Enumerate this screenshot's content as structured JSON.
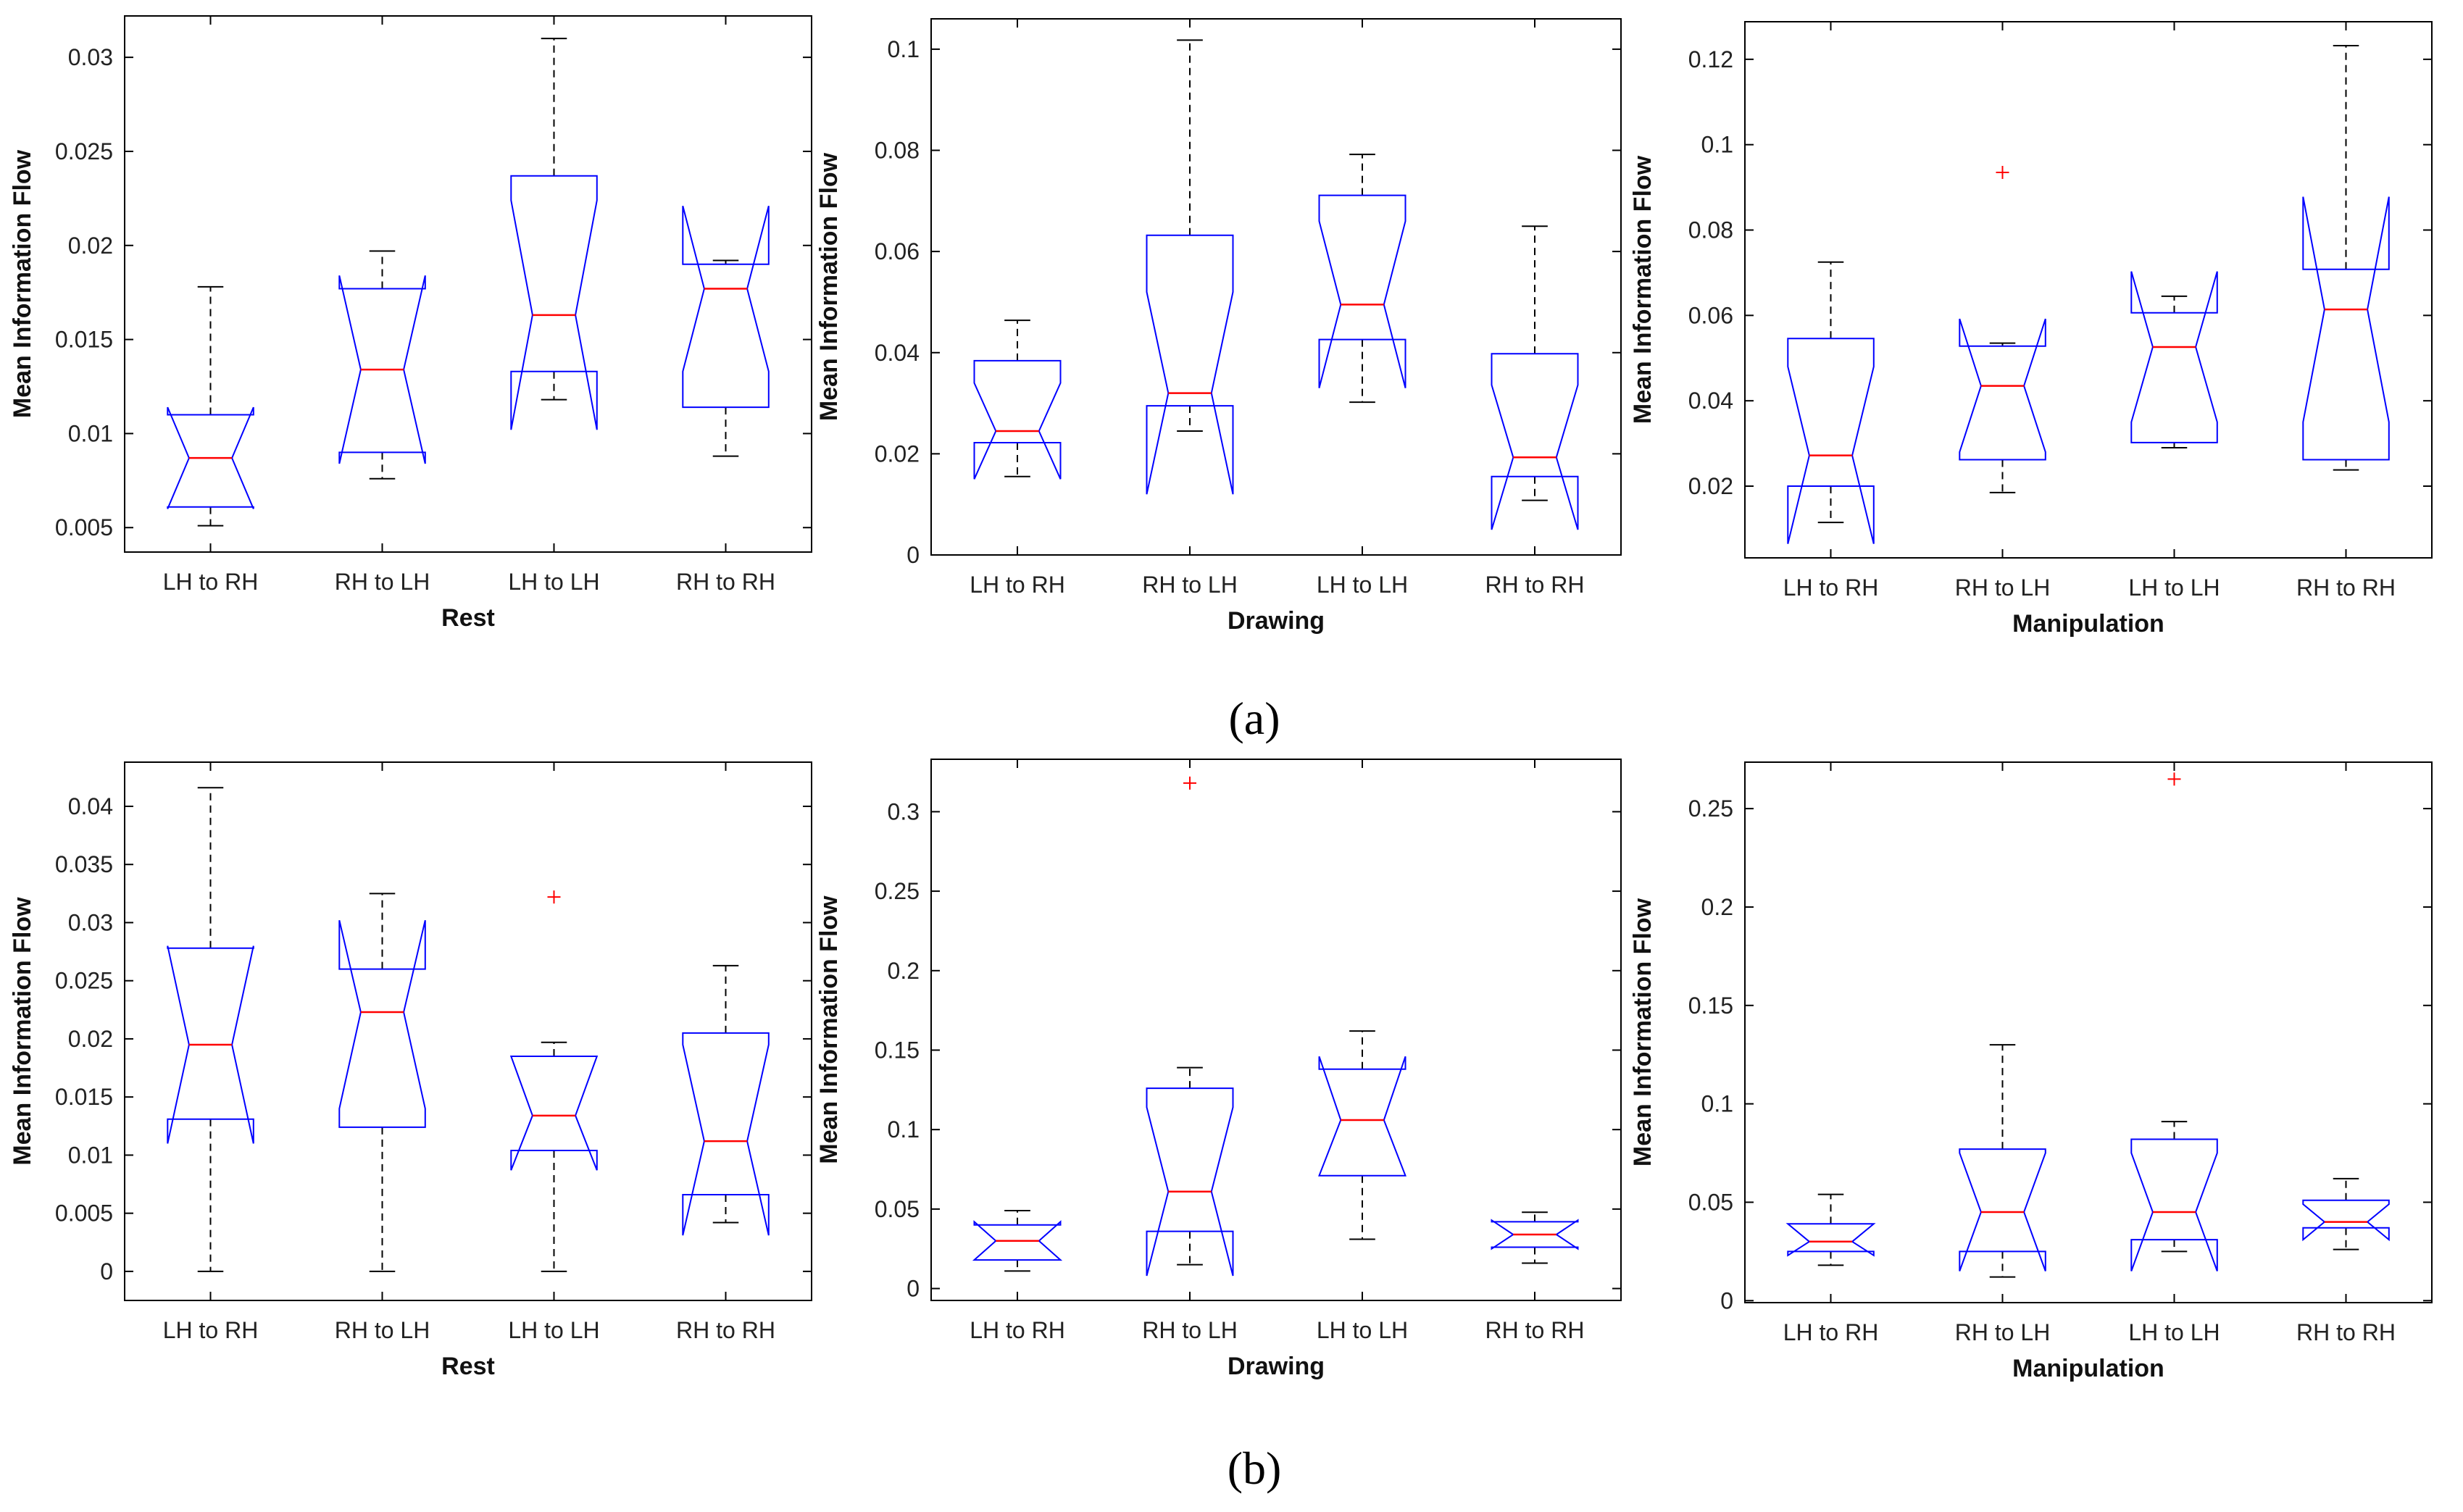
{
  "panel_labels": {
    "a": "(a)",
    "b": "(b)"
  },
  "colors": {
    "box": "#0000ff",
    "median": "#ff0000",
    "outlier": "#ff0000",
    "whisker": "#000000",
    "axis": "#000000"
  },
  "chart_data": [
    {
      "id": "a-rest",
      "type": "boxplot",
      "notched": true,
      "title": "",
      "xlabel": "Rest",
      "ylabel": "Mean Information Flow",
      "categories": [
        "LH to RH",
        "RH to LH",
        "LH to LH",
        "RH to RH"
      ],
      "ylim": [
        0.0037,
        0.0322
      ],
      "yticks": [
        0.005,
        0.01,
        0.015,
        0.02,
        0.025,
        0.03
      ],
      "ytick_labels": [
        "0.005",
        "0.01",
        "0.015",
        "0.02",
        "0.025",
        "0.03"
      ],
      "boxes": [
        {
          "whislo": 0.0051,
          "q1": 0.0061,
          "med": 0.0087,
          "q3": 0.011,
          "whishi": 0.0178,
          "notchlo": 0.006,
          "notchhi": 0.0114,
          "fliers": []
        },
        {
          "whislo": 0.0076,
          "q1": 0.009,
          "med": 0.0134,
          "q3": 0.0177,
          "whishi": 0.0197,
          "notchlo": 0.0084,
          "notchhi": 0.0184,
          "fliers": []
        },
        {
          "whislo": 0.0118,
          "q1": 0.0133,
          "med": 0.0163,
          "q3": 0.0237,
          "whishi": 0.031,
          "notchlo": 0.0102,
          "notchhi": 0.0224,
          "fliers": []
        },
        {
          "whislo": 0.0088,
          "q1": 0.0114,
          "med": 0.0177,
          "q3": 0.019,
          "whishi": 0.0192,
          "notchlo": 0.0133,
          "notchhi": 0.0221,
          "fliers": []
        }
      ]
    },
    {
      "id": "a-drawing",
      "type": "boxplot",
      "notched": true,
      "title": "",
      "xlabel": "Drawing",
      "ylabel": "Mean Information Flow",
      "categories": [
        "LH to RH",
        "RH to LH",
        "LH to LH",
        "RH to RH"
      ],
      "ylim": [
        0,
        0.106
      ],
      "yticks": [
        0,
        0.02,
        0.04,
        0.06,
        0.08,
        0.1
      ],
      "ytick_labels": [
        "0",
        "0.02",
        "0.04",
        "0.06",
        "0.08",
        "0.1"
      ],
      "boxes": [
        {
          "whislo": 0.0155,
          "q1": 0.0222,
          "med": 0.0245,
          "q3": 0.0384,
          "whishi": 0.0464,
          "notchlo": 0.015,
          "notchhi": 0.034,
          "fliers": []
        },
        {
          "whislo": 0.0245,
          "q1": 0.0295,
          "med": 0.032,
          "q3": 0.0632,
          "whishi": 0.1018,
          "notchlo": 0.012,
          "notchhi": 0.052,
          "fliers": []
        },
        {
          "whislo": 0.0302,
          "q1": 0.0426,
          "med": 0.0495,
          "q3": 0.0711,
          "whishi": 0.0792,
          "notchlo": 0.033,
          "notchhi": 0.066,
          "fliers": []
        },
        {
          "whislo": 0.0108,
          "q1": 0.0155,
          "med": 0.0193,
          "q3": 0.0398,
          "whishi": 0.065,
          "notchlo": 0.005,
          "notchhi": 0.0336,
          "fliers": []
        }
      ]
    },
    {
      "id": "a-manipulation",
      "type": "boxplot",
      "notched": true,
      "title": "",
      "xlabel": "Manipulation",
      "ylabel": "Mean Information Flow",
      "categories": [
        "LH to RH",
        "RH to LH",
        "LH to LH",
        "RH to RH"
      ],
      "ylim": [
        0.0032,
        0.1288
      ],
      "yticks": [
        0.02,
        0.04,
        0.06,
        0.08,
        0.1,
        0.12
      ],
      "ytick_labels": [
        "0.02",
        "0.04",
        "0.06",
        "0.08",
        "0.1",
        "0.12"
      ],
      "boxes": [
        {
          "whislo": 0.0115,
          "q1": 0.02,
          "med": 0.0272,
          "q3": 0.0546,
          "whishi": 0.0725,
          "notchlo": 0.0065,
          "notchhi": 0.048,
          "fliers": []
        },
        {
          "whislo": 0.0185,
          "q1": 0.0262,
          "med": 0.0435,
          "q3": 0.0528,
          "whishi": 0.0535,
          "notchlo": 0.028,
          "notchhi": 0.0592,
          "fliers": [
            0.0935
          ]
        },
        {
          "whislo": 0.029,
          "q1": 0.0302,
          "med": 0.0526,
          "q3": 0.0606,
          "whishi": 0.0645,
          "notchlo": 0.035,
          "notchhi": 0.0703,
          "fliers": []
        },
        {
          "whislo": 0.0238,
          "q1": 0.0262,
          "med": 0.0614,
          "q3": 0.0708,
          "whishi": 0.1232,
          "notchlo": 0.035,
          "notchhi": 0.0878,
          "fliers": []
        }
      ]
    },
    {
      "id": "b-rest",
      "type": "boxplot",
      "notched": true,
      "title": "",
      "xlabel": "Rest",
      "ylabel": "Mean Information Flow",
      "categories": [
        "LH to RH",
        "RH to LH",
        "LH to LH",
        "RH to RH"
      ],
      "ylim": [
        -0.0025,
        0.0438
      ],
      "yticks": [
        0,
        0.005,
        0.01,
        0.015,
        0.02,
        0.025,
        0.03,
        0.035,
        0.04
      ],
      "ytick_labels": [
        "0",
        "0.005",
        "0.01",
        "0.015",
        "0.02",
        "0.025",
        "0.03",
        "0.035",
        "0.04"
      ],
      "boxes": [
        {
          "whislo": 0.0,
          "q1": 0.0131,
          "med": 0.0195,
          "q3": 0.0278,
          "whishi": 0.0416,
          "notchlo": 0.011,
          "notchhi": 0.028,
          "fliers": []
        },
        {
          "whislo": 0.0,
          "q1": 0.0124,
          "med": 0.0223,
          "q3": 0.026,
          "whishi": 0.0325,
          "notchlo": 0.014,
          "notchhi": 0.0302,
          "fliers": []
        },
        {
          "whislo": 0.0,
          "q1": 0.0104,
          "med": 0.0134,
          "q3": 0.0185,
          "whishi": 0.0197,
          "notchlo": 0.0087,
          "notchhi": 0.0185,
          "fliers": [
            0.0322
          ]
        },
        {
          "whislo": 0.0042,
          "q1": 0.0066,
          "med": 0.0112,
          "q3": 0.0205,
          "whishi": 0.0263,
          "notchlo": 0.0031,
          "notchhi": 0.0195,
          "fliers": []
        }
      ]
    },
    {
      "id": "b-drawing",
      "type": "boxplot",
      "notched": true,
      "title": "",
      "xlabel": "Drawing",
      "ylabel": "Mean Information Flow",
      "categories": [
        "LH to RH",
        "RH to LH",
        "LH to LH",
        "RH to RH"
      ],
      "ylim": [
        -0.0075,
        0.333
      ],
      "yticks": [
        0,
        0.05,
        0.1,
        0.15,
        0.2,
        0.25,
        0.3
      ],
      "ytick_labels": [
        "0",
        "0.05",
        "0.1",
        "0.15",
        "0.2",
        "0.25",
        "0.3"
      ],
      "boxes": [
        {
          "whislo": 0.011,
          "q1": 0.018,
          "med": 0.03,
          "q3": 0.04,
          "whishi": 0.049,
          "notchlo": 0.018,
          "notchhi": 0.042,
          "fliers": []
        },
        {
          "whislo": 0.015,
          "q1": 0.036,
          "med": 0.061,
          "q3": 0.126,
          "whishi": 0.139,
          "notchlo": 0.008,
          "notchhi": 0.114,
          "fliers": [
            0.318
          ]
        },
        {
          "whislo": 0.031,
          "q1": 0.071,
          "med": 0.106,
          "q3": 0.138,
          "whishi": 0.162,
          "notchlo": 0.071,
          "notchhi": 0.146,
          "fliers": []
        },
        {
          "whislo": 0.016,
          "q1": 0.026,
          "med": 0.034,
          "q3": 0.042,
          "whishi": 0.048,
          "notchlo": 0.025,
          "notchhi": 0.043,
          "fliers": []
        }
      ]
    },
    {
      "id": "b-manipulation",
      "type": "boxplot",
      "notched": true,
      "title": "",
      "xlabel": "Manipulation",
      "ylabel": "Mean Information Flow",
      "categories": [
        "LH to RH",
        "RH to LH",
        "LH to LH",
        "RH to RH"
      ],
      "ylim": [
        -0.001,
        0.2736
      ],
      "yticks": [
        0,
        0.05,
        0.1,
        0.15,
        0.2,
        0.25
      ],
      "ytick_labels": [
        "0",
        "0.05",
        "0.1",
        "0.15",
        "0.2",
        "0.25"
      ],
      "boxes": [
        {
          "whislo": 0.018,
          "q1": 0.025,
          "med": 0.03,
          "q3": 0.039,
          "whishi": 0.054,
          "notchlo": 0.023,
          "notchhi": 0.039,
          "fliers": []
        },
        {
          "whislo": 0.012,
          "q1": 0.025,
          "med": 0.045,
          "q3": 0.077,
          "whishi": 0.13,
          "notchlo": 0.015,
          "notchhi": 0.075,
          "fliers": []
        },
        {
          "whislo": 0.025,
          "q1": 0.031,
          "med": 0.045,
          "q3": 0.082,
          "whishi": 0.091,
          "notchlo": 0.015,
          "notchhi": 0.075,
          "fliers": [
            0.265
          ]
        },
        {
          "whislo": 0.026,
          "q1": 0.037,
          "med": 0.04,
          "q3": 0.051,
          "whishi": 0.062,
          "notchlo": 0.031,
          "notchhi": 0.049,
          "fliers": []
        }
      ]
    }
  ]
}
